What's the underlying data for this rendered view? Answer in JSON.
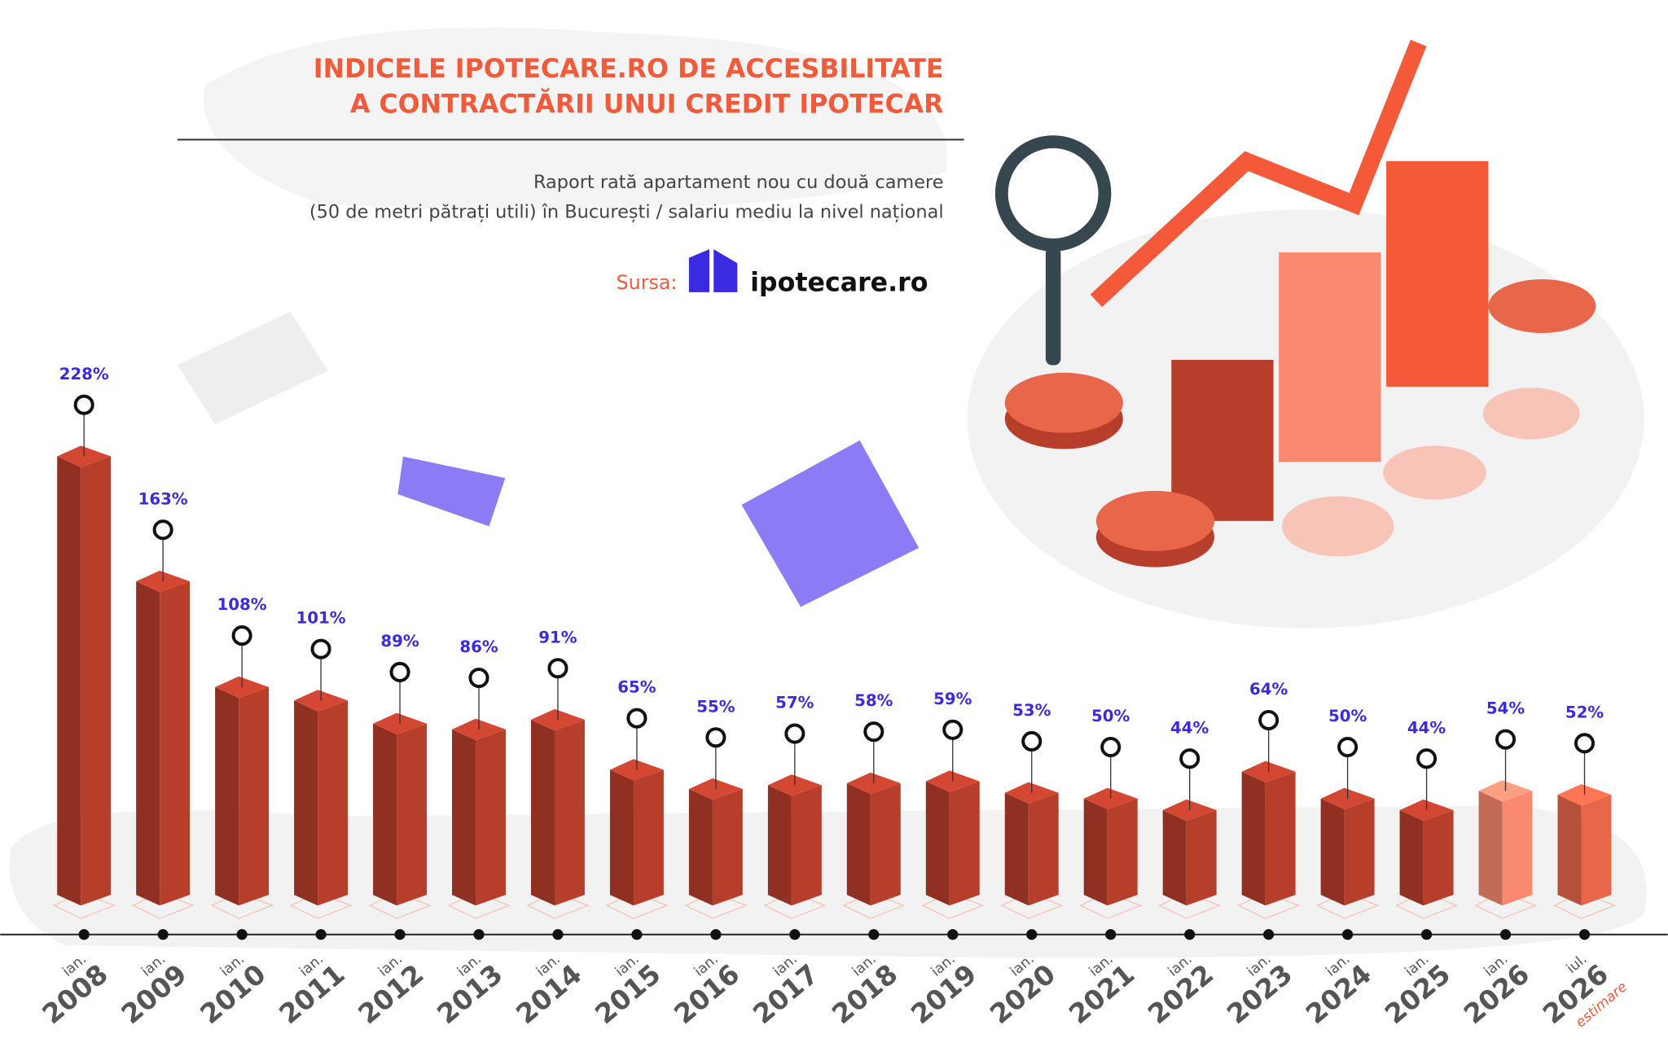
{
  "chart_data": {
    "type": "bar",
    "title_lines": [
      "INDICELE IPOTECARE.RO DE ACCESBILITATE",
      "A CONTRACTĂRII UNUI CREDIT IPOTECAR"
    ],
    "subtitle_lines": [
      "Raport rată apartament nou cu două camere",
      "(50 de metri pătrați utili) în București / salariu mediu la nivel național"
    ],
    "source_label": "Sursa:",
    "source_name": "ipotecare.ro",
    "category_prefixes": [
      "ian.",
      "ian.",
      "ian.",
      "ian.",
      "ian.",
      "ian.",
      "ian.",
      "ian.",
      "ian.",
      "ian.",
      "ian.",
      "ian.",
      "ian.",
      "ian.",
      "ian.",
      "ian.",
      "ian.",
      "ian.",
      "ian.",
      "iul."
    ],
    "categories": [
      "2008",
      "2009",
      "2010",
      "2011",
      "2012",
      "2013",
      "2014",
      "2015",
      "2016",
      "2017",
      "2018",
      "2019",
      "2020",
      "2021",
      "2022",
      "2023",
      "2024",
      "2025",
      "2026",
      "2026"
    ],
    "estimate_note": "estimare",
    "values": [
      228,
      163,
      108,
      101,
      89,
      86,
      91,
      65,
      55,
      57,
      58,
      59,
      53,
      50,
      44,
      64,
      50,
      44,
      54,
      52
    ],
    "value_labels": [
      "228%",
      "163%",
      "108%",
      "101%",
      "89%",
      "86%",
      "91%",
      "65%",
      "55%",
      "57%",
      "58%",
      "59%",
      "53%",
      "50%",
      "44%",
      "64%",
      "50%",
      "44%",
      "54%",
      "52%"
    ],
    "colors": [
      "#b83e2c",
      "#b83e2c",
      "#b83e2c",
      "#b83e2c",
      "#b83e2c",
      "#b83e2c",
      "#b83e2c",
      "#b83e2c",
      "#b83e2c",
      "#b83e2c",
      "#b83e2c",
      "#b83e2c",
      "#b83e2c",
      "#b83e2c",
      "#b83e2c",
      "#b83e2c",
      "#b83e2c",
      "#b83e2c",
      "#f98a70",
      "#e8674a"
    ]
  }
}
